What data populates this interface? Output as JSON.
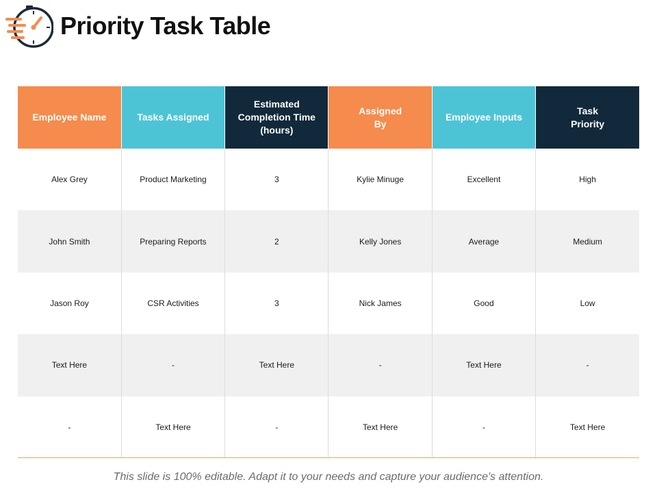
{
  "slide": {
    "title": "Priority Task Table",
    "footer": "This slide is 100% editable. Adapt it to your needs and capture your audience's attention.",
    "logo_icon": "stopwatch-speed-icon"
  },
  "colors": {
    "orange": "#f58b4c",
    "cyan": "#4dc4d6",
    "navy": "#11293b",
    "row_alt": "#f0f0f0",
    "bottom_rule": "#e8a46e"
  },
  "table": {
    "headers": [
      {
        "label": "Employee Name",
        "color": "#f58b4c"
      },
      {
        "label": "Tasks Assigned",
        "color": "#4dc4d6"
      },
      {
        "label": "Estimated\nCompletion Time\n(hours)",
        "color": "#11293b"
      },
      {
        "label": "Assigned\nBy",
        "color": "#f58b4c"
      },
      {
        "label": "Employee Inputs",
        "color": "#4dc4d6"
      },
      {
        "label": "Task\nPriority",
        "color": "#11293b"
      }
    ],
    "rows": [
      [
        "Alex Grey",
        "Product Marketing",
        "3",
        "Kylie Minuge",
        "Excellent",
        "High"
      ],
      [
        "John Smith",
        "Preparing Reports",
        "2",
        "Kelly Jones",
        "Average",
        "Medium"
      ],
      [
        "Jason Roy",
        "CSR Activities",
        "3",
        "Nick James",
        "Good",
        "Low"
      ],
      [
        "Text Here",
        "-",
        "Text Here",
        "-",
        "Text Here",
        "-"
      ],
      [
        "-",
        "Text Here",
        "-",
        "Text Here",
        "-",
        "Text Here"
      ]
    ]
  }
}
